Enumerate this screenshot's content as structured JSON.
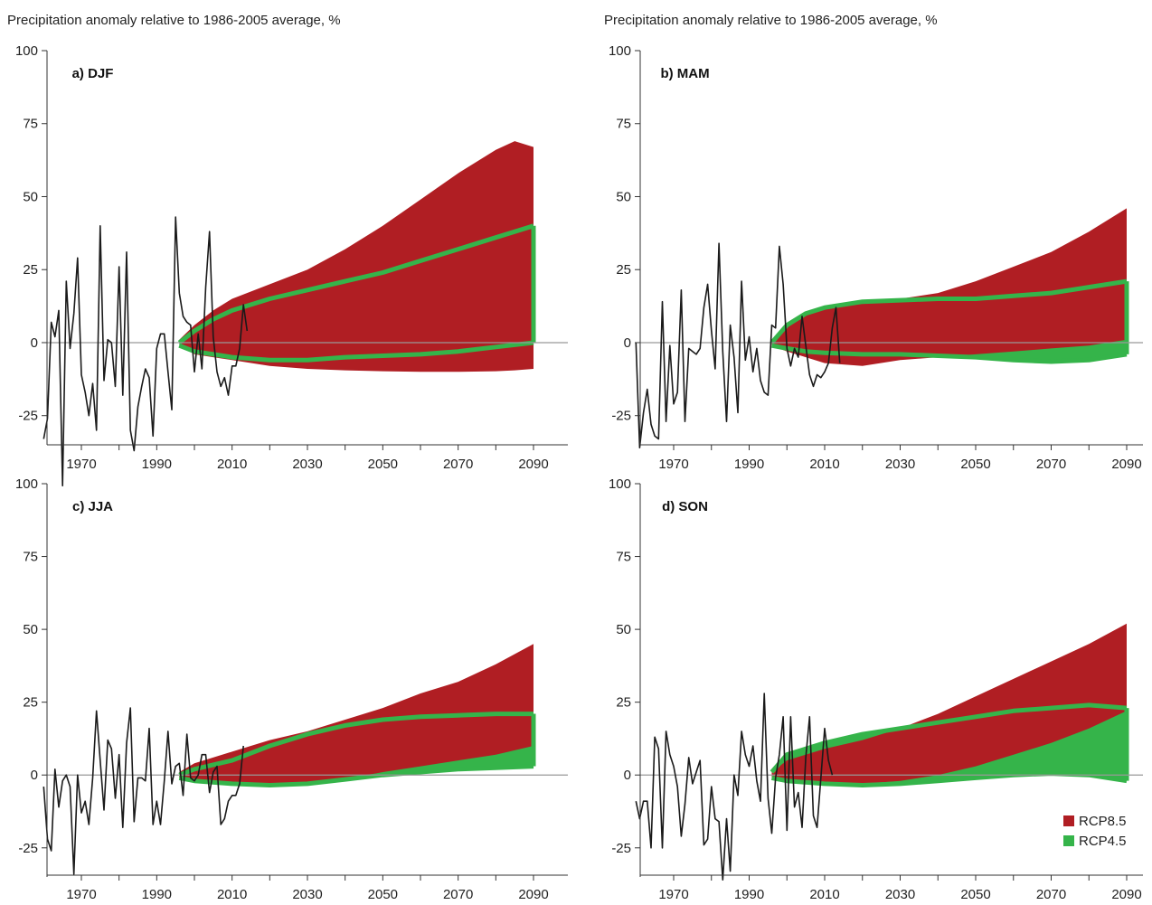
{
  "page": {
    "title_left": "Precipitation anomaly relative to 1986-2005 average, %",
    "title_right": "Precipitation anomaly relative to 1986-2005 average, %"
  },
  "colors": {
    "rcp85": "#b01e23",
    "rcp45": "#35b44a",
    "observed": "#1a1a1a",
    "zero_line": "#999999",
    "axis": "#333333"
  },
  "legend": {
    "position": "bottom-right of panel d",
    "items": [
      {
        "label": "RCP8.5",
        "color": "#b01e23"
      },
      {
        "label": "RCP4.5",
        "color": "#35b44a"
      }
    ]
  },
  "chart_data": [
    {
      "type": "area",
      "label": "a) DJF",
      "ylabel": "Precipitation anomaly relative to 1986-2005 average, %",
      "xlim": [
        1960,
        2095
      ],
      "ylim": [
        -35,
        100
      ],
      "yticks": [
        -25,
        0,
        25,
        50,
        75,
        100
      ],
      "xticks": [
        1970,
        1990,
        2010,
        2030,
        2050,
        2070,
        2090
      ],
      "series": [
        {
          "name": "RCP8.5",
          "x": [
            1996,
            2000,
            2005,
            2010,
            2020,
            2030,
            2040,
            2050,
            2060,
            2070,
            2080,
            2085,
            2090
          ],
          "upper": [
            1,
            6,
            11,
            15,
            20,
            25,
            32,
            40,
            49,
            58,
            66,
            69,
            67
          ],
          "lower": [
            0,
            -4,
            -5,
            -6,
            -8,
            -9,
            -9.5,
            -9.8,
            -10,
            -10,
            -9.8,
            -9.5,
            -9
          ]
        },
        {
          "name": "RCP4.5",
          "x": [
            1996,
            2000,
            2005,
            2010,
            2020,
            2030,
            2040,
            2050,
            2060,
            2070,
            2080,
            2090
          ],
          "upper": [
            0,
            4,
            8,
            11,
            15,
            18,
            21,
            24,
            28,
            32,
            36,
            40
          ],
          "lower": [
            -1,
            -3,
            -4,
            -5,
            -6,
            -6,
            -5,
            -4.5,
            -4,
            -3,
            -1.5,
            0
          ]
        },
        {
          "name": "Observed",
          "x": [
            1960,
            1961,
            1962,
            1963,
            1964,
            1965,
            1966,
            1967,
            1968,
            1969,
            1970,
            1971,
            1972,
            1973,
            1974,
            1975,
            1976,
            1977,
            1978,
            1979,
            1980,
            1981,
            1982,
            1983,
            1984,
            1985,
            1986,
            1987,
            1988,
            1989,
            1990,
            1991,
            1992,
            1993,
            1994,
            1995,
            1996,
            1997,
            1998,
            1999,
            2000,
            2001,
            2002,
            2003,
            2004,
            2005,
            2006,
            2007,
            2008,
            2009,
            2010,
            2011,
            2012,
            2013,
            2014
          ],
          "y": [
            -33,
            -26,
            7,
            2,
            11,
            -49,
            21,
            -2,
            10,
            29,
            -11,
            -17,
            -25,
            -14,
            -30,
            40,
            -13,
            1,
            0,
            -15,
            26,
            -18,
            31,
            -30,
            -37,
            -22,
            -15,
            -9,
            -12,
            -32,
            -2,
            3,
            3,
            -10,
            -23,
            43,
            17,
            9,
            7,
            6,
            -10,
            3,
            -9,
            19,
            38,
            2,
            -10,
            -15,
            -12,
            -18,
            -8,
            -8,
            -2,
            13,
            4
          ]
        }
      ]
    },
    {
      "type": "area",
      "label": "b) MAM",
      "ylabel": "Precipitation anomaly relative to 1986-2005 average, %",
      "xlim": [
        1960,
        2095
      ],
      "ylim": [
        -35,
        100
      ],
      "yticks": [
        -25,
        0,
        25,
        50,
        75,
        100
      ],
      "xticks": [
        1970,
        1990,
        2010,
        2030,
        2050,
        2070,
        2090
      ],
      "series": [
        {
          "name": "RCP8.5",
          "x": [
            1996,
            2000,
            2005,
            2010,
            2020,
            2030,
            2040,
            2050,
            2060,
            2070,
            2080,
            2090
          ],
          "upper": [
            1,
            6,
            10,
            12,
            14,
            15,
            17,
            21,
            26,
            31,
            38,
            46
          ],
          "lower": [
            -1,
            -3,
            -5,
            -7,
            -8,
            -6,
            -5,
            -4,
            -3,
            -2,
            -1,
            1
          ]
        },
        {
          "name": "RCP4.5",
          "x": [
            1996,
            2000,
            2005,
            2010,
            2020,
            2030,
            2040,
            2050,
            2060,
            2070,
            2080,
            2090
          ],
          "upper": [
            0,
            6,
            10,
            12,
            14,
            14.5,
            15,
            15,
            16,
            17,
            19,
            21
          ],
          "lower": [
            -1,
            -2,
            -3,
            -3.5,
            -4,
            -4,
            -4.5,
            -5,
            -6,
            -6.5,
            -6,
            -4
          ]
        },
        {
          "name": "Observed",
          "x": [
            1960,
            1961,
            1962,
            1963,
            1964,
            1965,
            1966,
            1967,
            1968,
            1969,
            1970,
            1971,
            1972,
            1973,
            1974,
            1975,
            1976,
            1977,
            1978,
            1979,
            1980,
            1981,
            1982,
            1983,
            1984,
            1985,
            1986,
            1987,
            1988,
            1989,
            1990,
            1991,
            1992,
            1993,
            1994,
            1995,
            1996,
            1997,
            1998,
            1999,
            2000,
            2001,
            2002,
            2003,
            2004,
            2005,
            2006,
            2007,
            2008,
            2009,
            2010,
            2011,
            2012,
            2013,
            2014
          ],
          "y": [
            0,
            -36,
            -24,
            -16,
            -28,
            -32,
            -33,
            14,
            -27,
            -1,
            -21,
            -17,
            18,
            -27,
            -2,
            -3,
            -4,
            -2,
            12,
            20,
            4,
            -9,
            34,
            -3,
            -27,
            6,
            -5,
            -24,
            21,
            -6,
            2,
            -10,
            -2,
            -13,
            -17,
            -18,
            6,
            5,
            33,
            20,
            -2,
            -8,
            -2,
            -5,
            9,
            -1,
            -11,
            -15,
            -11,
            -12,
            -10,
            -7,
            5,
            12,
            -7
          ]
        }
      ]
    },
    {
      "type": "area",
      "label": "c) JJA",
      "ylabel": "Precipitation anomaly relative to 1986-2005 average, %",
      "xlim": [
        1960,
        2095
      ],
      "ylim": [
        -35,
        100
      ],
      "yticks": [
        -25,
        0,
        25,
        50,
        75,
        100
      ],
      "xticks": [
        1970,
        1990,
        2010,
        2030,
        2050,
        2070,
        2090
      ],
      "series": [
        {
          "name": "RCP8.5",
          "x": [
            1996,
            2000,
            2010,
            2020,
            2030,
            2040,
            2050,
            2060,
            2070,
            2080,
            2090
          ],
          "upper": [
            1,
            4,
            8,
            12,
            15,
            19,
            23,
            28,
            32,
            38,
            45
          ],
          "lower": [
            -1,
            -2,
            -3,
            -3.5,
            -3,
            -1.5,
            1,
            3,
            5,
            7,
            10
          ]
        },
        {
          "name": "RCP4.5",
          "x": [
            1996,
            2000,
            2010,
            2020,
            2030,
            2040,
            2050,
            2060,
            2070,
            2080,
            2090
          ],
          "upper": [
            0,
            2,
            5,
            10,
            14,
            17,
            19,
            20,
            20.5,
            21,
            21
          ],
          "lower": [
            -1,
            -2,
            -3,
            -3.5,
            -3,
            -1.5,
            0,
            1,
            2,
            2.5,
            3
          ]
        },
        {
          "name": "Observed",
          "x": [
            1960,
            1961,
            1962,
            1963,
            1964,
            1965,
            1966,
            1967,
            1968,
            1969,
            1970,
            1971,
            1972,
            1973,
            1974,
            1975,
            1976,
            1977,
            1978,
            1979,
            1980,
            1981,
            1982,
            1983,
            1984,
            1985,
            1986,
            1987,
            1988,
            1989,
            1990,
            1991,
            1992,
            1993,
            1994,
            1995,
            1996,
            1997,
            1998,
            1999,
            2000,
            2001,
            2002,
            2003,
            2004,
            2005,
            2006,
            2007,
            2008,
            2009,
            2010,
            2011,
            2012,
            2013,
            2014
          ],
          "y": [
            -4,
            -22,
            -26,
            2,
            -11,
            -2,
            0,
            -4,
            -34,
            0,
            -13,
            -9,
            -17,
            -1,
            22,
            5,
            -12,
            12,
            9,
            -8,
            7,
            -18,
            11,
            23,
            -16,
            -1,
            -1,
            -2,
            16,
            -17,
            -9,
            -17,
            -2,
            15,
            -3,
            3,
            4,
            -7,
            14,
            -1,
            -2,
            0,
            7,
            7,
            -6,
            1,
            3,
            -17,
            -15,
            -9,
            -7,
            -7,
            -3,
            10,
            null
          ]
        }
      ]
    },
    {
      "type": "area",
      "label": "d) SON",
      "ylabel": "Precipitation anomaly relative to 1986-2005 average, %",
      "xlim": [
        1960,
        2095
      ],
      "ylim": [
        -35,
        100
      ],
      "yticks": [
        -25,
        0,
        25,
        50,
        75,
        100
      ],
      "xticks": [
        1970,
        1990,
        2010,
        2030,
        2050,
        2070,
        2090
      ],
      "series": [
        {
          "name": "RCP8.5",
          "x": [
            1996,
            2000,
            2010,
            2020,
            2030,
            2040,
            2050,
            2060,
            2070,
            2080,
            2090
          ],
          "upper": [
            1,
            5,
            9,
            12,
            16,
            21,
            27,
            33,
            39,
            45,
            52
          ],
          "lower": [
            -1,
            -2,
            -3.5,
            -3,
            -2,
            0,
            3,
            7,
            11,
            16,
            22
          ]
        },
        {
          "name": "RCP4.5",
          "x": [
            1996,
            2000,
            2010,
            2020,
            2030,
            2040,
            2050,
            2060,
            2070,
            2080,
            2090
          ],
          "upper": [
            1,
            7,
            11,
            14,
            16,
            18,
            20,
            22,
            23,
            24,
            23
          ],
          "lower": [
            -1,
            -2,
            -3,
            -3.5,
            -3,
            -2,
            -1,
            0,
            0.5,
            0,
            -2
          ]
        },
        {
          "name": "Observed",
          "x": [
            1960,
            1961,
            1962,
            1963,
            1964,
            1965,
            1966,
            1967,
            1968,
            1969,
            1970,
            1971,
            1972,
            1973,
            1974,
            1975,
            1976,
            1977,
            1978,
            1979,
            1980,
            1981,
            1982,
            1983,
            1984,
            1985,
            1986,
            1987,
            1988,
            1989,
            1990,
            1991,
            1992,
            1993,
            1994,
            1995,
            1996,
            1997,
            1998,
            1999,
            2000,
            2001,
            2002,
            2003,
            2004,
            2005,
            2006,
            2007,
            2008,
            2009,
            2010,
            2011,
            2012,
            2013,
            2014
          ],
          "y": [
            -9,
            -15,
            -9,
            -9,
            -25,
            13,
            9,
            -25,
            15,
            7,
            3,
            -4,
            -21,
            -10,
            6,
            -3,
            1,
            5,
            -24,
            -22,
            -4,
            -15,
            -16,
            -36,
            -15,
            -33,
            0,
            -7,
            15,
            7,
            3,
            10,
            -2,
            -9,
            28,
            -8,
            -20,
            -1,
            7,
            20,
            -19,
            20,
            -11,
            -6,
            -18,
            6,
            20,
            -14,
            -18,
            -1,
            16,
            5,
            0,
            null,
            null
          ]
        }
      ]
    }
  ]
}
